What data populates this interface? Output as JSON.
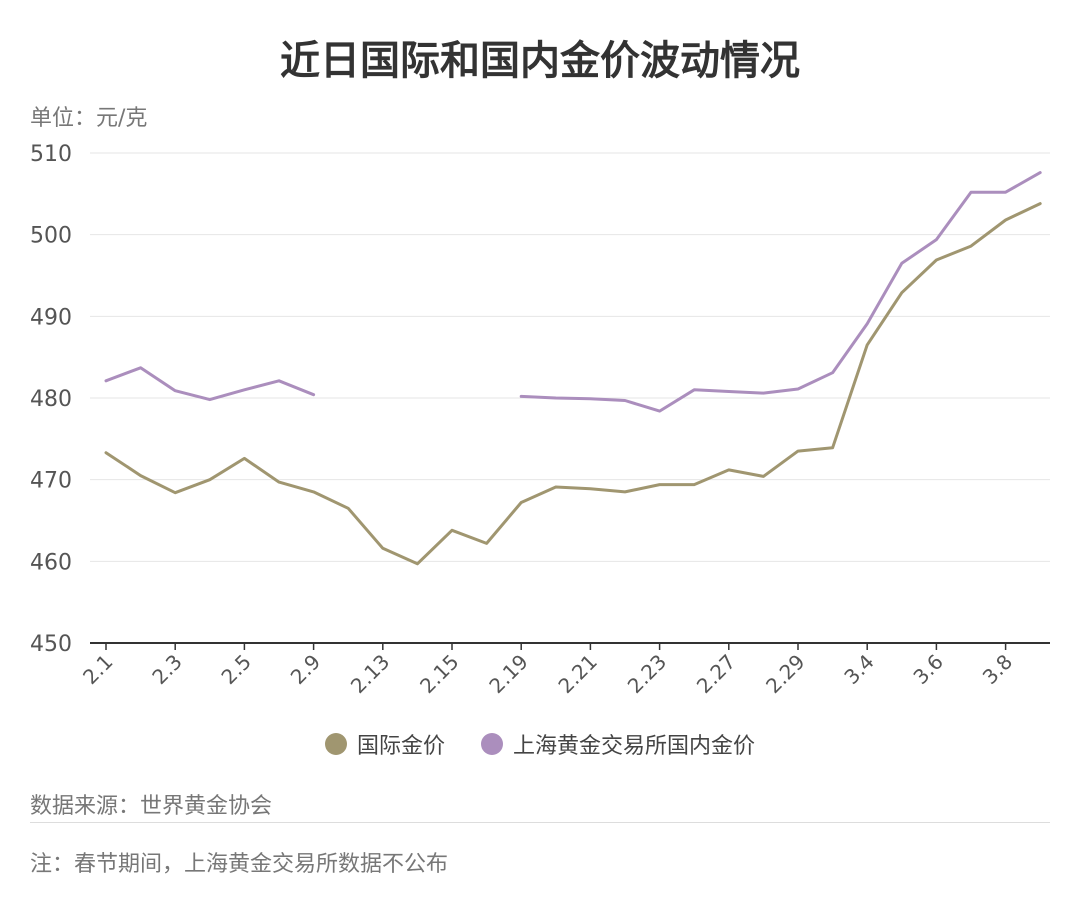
{
  "chart_data": {
    "type": "line",
    "title": "近日国际和国内金价波动情况",
    "unit_label": "单位：元/克",
    "ylim": [
      450,
      510
    ],
    "yticks": [
      450,
      460,
      470,
      480,
      490,
      500,
      510
    ],
    "x_tick_labels": [
      "2.1",
      "2.3",
      "2.5",
      "2.9",
      "2.13",
      "2.15",
      "2.19",
      "2.21",
      "2.23",
      "2.27",
      "2.29",
      "3.4",
      "3.6",
      "3.8"
    ],
    "series": [
      {
        "name": "国际金价",
        "color": "#a09670",
        "values": [
          473.3,
          470.5,
          468.4,
          470.0,
          472.6,
          469.7,
          468.5,
          466.5,
          461.6,
          459.7,
          463.8,
          462.2,
          467.2,
          469.1,
          468.9,
          468.5,
          469.4,
          469.4,
          471.2,
          470.4,
          473.5,
          473.9,
          486.5,
          492.9,
          496.9,
          498.6,
          501.8,
          503.8
        ]
      },
      {
        "name": "上海黄金交易所国内金价",
        "color": "#ab8ebd",
        "values": [
          482.1,
          483.7,
          480.9,
          479.8,
          481.0,
          482.1,
          480.4,
          null,
          null,
          null,
          null,
          null,
          480.2,
          480.0,
          479.9,
          479.7,
          478.4,
          481.0,
          480.8,
          480.6,
          481.1,
          483.1,
          489.1,
          496.5,
          499.4,
          505.2,
          505.2,
          507.6
        ]
      }
    ]
  },
  "source": "数据来源：世界黄金协会",
  "note": "注：春节期间，上海黄金交易所数据不公布"
}
